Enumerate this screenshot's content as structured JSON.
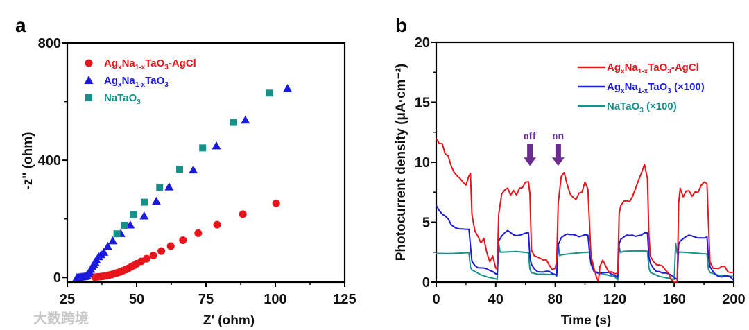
{
  "chart_data": [
    {
      "panel_label": "a",
      "type": "scatter",
      "xlabel": "Z' (ohm)",
      "ylabel": "-z'' (ohm)",
      "xlim": [
        25,
        125
      ],
      "ylim": [
        -16,
        800
      ],
      "xticks": [
        "25",
        "50",
        "75",
        "100",
        "125"
      ],
      "xtick_values": [
        25,
        50,
        75,
        100,
        125
      ],
      "yticks": [
        "0",
        "400",
        "800"
      ],
      "ytick_values": [
        0,
        400,
        800
      ],
      "grid": false,
      "legend_position": "top-left",
      "series": [
        {
          "name": "AgxNa1-xTaO3-AgCl",
          "label_parts": [
            [
              "Ag",
              ""
            ],
            [
              "x",
              "sub"
            ],
            [
              "Na",
              ""
            ],
            [
              "1-x",
              "sub"
            ],
            [
              "TaO",
              ""
            ],
            [
              "3",
              "sub"
            ],
            [
              "-AgCl",
              ""
            ]
          ],
          "marker": "circle",
          "color": "#e8141c",
          "x": [
            35,
            36,
            37,
            38,
            39,
            40,
            41,
            42,
            43,
            44,
            45,
            46,
            47,
            48,
            49,
            50,
            51.7,
            53.6,
            56,
            58.9,
            62.3,
            66.7,
            72.2,
            79,
            88.3,
            100.3
          ],
          "y": [
            1,
            2,
            3,
            4,
            6,
            8,
            10,
            13,
            16,
            19,
            23,
            27,
            31,
            36,
            41,
            47,
            55,
            64,
            75,
            90,
            107,
            127,
            151,
            180,
            216,
            253
          ]
        },
        {
          "name": "AgxNa1-xTaO3",
          "label_parts": [
            [
              "Ag",
              ""
            ],
            [
              "x",
              "sub"
            ],
            [
              "Na",
              ""
            ],
            [
              "1-x",
              "sub"
            ],
            [
              "TaO",
              ""
            ],
            [
              "3",
              "sub"
            ]
          ],
          "marker": "triangle",
          "color": "#1a1adc",
          "x": [
            28.5,
            29,
            29.5,
            30,
            30.5,
            31,
            31.5,
            32,
            32.5,
            33,
            33.5,
            34,
            34.5,
            35,
            35.5,
            36.3,
            37.2,
            38.2,
            39.6,
            41.4,
            44.3,
            47.7,
            52.7,
            57.1,
            61.7,
            70.4,
            78.75,
            89.2,
            104.4
          ],
          "y": [
            0,
            1,
            1,
            2,
            2,
            3,
            4,
            7,
            12,
            20,
            28,
            36,
            44,
            52,
            60,
            71,
            78,
            86,
            106,
            125,
            150,
            179,
            210,
            260,
            309,
            367,
            449,
            537,
            645
          ]
        },
        {
          "name": "NaTaO3",
          "label_parts": [
            [
              "NaTaO",
              ""
            ],
            [
              "3",
              "sub"
            ]
          ],
          "marker": "square",
          "color": "#17908a",
          "x": [
            42.9,
            45.5,
            48.75,
            52.75,
            58.3,
            65.5,
            73.8,
            85,
            97.9
          ],
          "y": [
            149,
            178,
            215,
            257,
            307,
            369,
            442,
            529,
            629
          ]
        }
      ]
    },
    {
      "panel_label": "b",
      "type": "line",
      "xlabel": "Time (s)",
      "ylabel": "Photocurrent density (μA·cm⁻²)",
      "xlim": [
        0,
        200
      ],
      "ylim": [
        0,
        20
      ],
      "xticks": [
        "0",
        "40",
        "80",
        "120",
        "160",
        "200"
      ],
      "xtick_values": [
        0,
        40,
        80,
        120,
        160,
        200
      ],
      "yticks": [
        "0",
        "5",
        "10",
        "15",
        "20"
      ],
      "ytick_values": [
        0,
        5,
        10,
        15,
        20
      ],
      "grid": false,
      "legend_position": "top-right",
      "annotations": [
        {
          "text": "off",
          "x": 63,
          "y": 9.7,
          "color": "#6a2c91"
        },
        {
          "text": "on",
          "x": 82,
          "y": 9.7,
          "color": "#6a2c91"
        }
      ],
      "series": [
        {
          "name": "AgxNa1-xTaO3-AgCl",
          "label_parts": [
            [
              "Ag",
              ""
            ],
            [
              "x",
              "sub"
            ],
            [
              "Na",
              ""
            ],
            [
              "1-x",
              "sub"
            ],
            [
              "TaO",
              ""
            ],
            [
              "3",
              "sub"
            ],
            [
              "-AgCl",
              ""
            ]
          ],
          "color": "#e8141c",
          "x": [
            0,
            2,
            4,
            6,
            8,
            10,
            12,
            14,
            16,
            18,
            20,
            22,
            23,
            24,
            26,
            28,
            30,
            32,
            34,
            36,
            38,
            40,
            41,
            42,
            44,
            46,
            48,
            50,
            52,
            54,
            56,
            58,
            60,
            62,
            63,
            64,
            66,
            68,
            70,
            72,
            74,
            76,
            78,
            80,
            81,
            82,
            84,
            86,
            88,
            90,
            92,
            94,
            96,
            98,
            100,
            102,
            103,
            104,
            106,
            108,
            109,
            110,
            112,
            114,
            116,
            118,
            120,
            122,
            123,
            124,
            126,
            128,
            130,
            132,
            134,
            136,
            138,
            140,
            142,
            143,
            144,
            146,
            148,
            150,
            152,
            154,
            156,
            158,
            160,
            162,
            163,
            164,
            166,
            168,
            170,
            172,
            174,
            176,
            178,
            180,
            182,
            183,
            184,
            186,
            188,
            190,
            192,
            194,
            196,
            198,
            200
          ],
          "y": [
            12,
            11.3,
            11.2,
            10.5,
            10.6,
            10,
            9.5,
            9,
            8.5,
            8,
            7.8,
            8.8,
            9.3,
            6,
            4.5,
            3.8,
            3,
            3.3,
            2.3,
            1.8,
            2.5,
            1.5,
            1.2,
            5.5,
            7,
            7.4,
            7.8,
            7.5,
            8,
            7.5,
            7.8,
            7.6,
            8,
            8.2,
            7.5,
            3,
            2.5,
            2.2,
            1.8,
            1.5,
            1.6,
            1.4,
            1.3,
            1.5,
            2,
            6.5,
            8.5,
            8.8,
            8,
            7.5,
            7.4,
            7.2,
            7.5,
            7.3,
            8,
            7.5,
            5,
            2.5,
            1.5,
            0.5,
            0,
            1,
            1.5,
            1.2,
            1,
            1.2,
            1,
            0.8,
            5.5,
            6,
            6.5,
            6.8,
            7,
            7.5,
            8,
            8.4,
            8.8,
            9.5,
            8.5,
            4,
            2.5,
            2,
            1.5,
            1.2,
            1,
            0.8,
            0.8,
            0.5,
            0.3,
            0.2,
            6.5,
            7.5,
            6.8,
            7.5,
            7.8,
            7.5,
            7.8,
            7.5,
            7.8,
            8,
            8,
            5,
            2,
            1.5,
            1.3,
            1,
            1,
            1,
            0.8,
            1,
            1.2
          ]
        },
        {
          "name": "AgxNa1-xTaO3 (×100)",
          "label_parts": [
            [
              "Ag",
              ""
            ],
            [
              "x",
              "sub"
            ],
            [
              "Na",
              ""
            ],
            [
              "1-x",
              "sub"
            ],
            [
              "TaO",
              ""
            ],
            [
              "3",
              "sub"
            ],
            [
              " (×100)",
              ""
            ]
          ],
          "color": "#1a1adc",
          "x": [
            0,
            2,
            4,
            6,
            8,
            10,
            12,
            14,
            16,
            18,
            20,
            22,
            23,
            24,
            26,
            28,
            30,
            32,
            34,
            36,
            38,
            40,
            41,
            42,
            44,
            46,
            48,
            50,
            52,
            54,
            56,
            58,
            60,
            62,
            63,
            64,
            66,
            68,
            70,
            72,
            74,
            76,
            78,
            80,
            81,
            82,
            84,
            86,
            88,
            90,
            92,
            94,
            96,
            98,
            100,
            102,
            103,
            104,
            106,
            108,
            110,
            112,
            114,
            116,
            118,
            120,
            122,
            123,
            124,
            126,
            128,
            130,
            132,
            134,
            136,
            138,
            140,
            142,
            143,
            144,
            146,
            148,
            150,
            152,
            154,
            156,
            158,
            160,
            162,
            163,
            164,
            166,
            168,
            170,
            172,
            174,
            176,
            178,
            180,
            182,
            183,
            184,
            186,
            188,
            190,
            192,
            194,
            196,
            198,
            200
          ],
          "y": [
            6.5,
            6,
            5.6,
            5.4,
            5.2,
            4.8,
            4.7,
            4.6,
            4.5,
            4.4,
            4.3,
            4.3,
            3,
            1.8,
            1.5,
            1.3,
            1.2,
            1.1,
            1,
            0.9,
            0.9,
            0.8,
            0.8,
            3.5,
            3.8,
            4,
            4.2,
            4.1,
            4,
            4,
            4,
            4,
            4,
            4,
            2,
            1.5,
            1.2,
            1,
            0.9,
            0.8,
            0.8,
            0.8,
            0.7,
            0.7,
            0.7,
            3.2,
            3.7,
            3.8,
            3.9,
            3.9,
            4,
            4,
            3.9,
            3.9,
            3.9,
            3.8,
            2.5,
            1.5,
            1,
            0.9,
            0.8,
            0.8,
            0.7,
            0.7,
            0.6,
            0.6,
            0.5,
            3.3,
            3.6,
            3.7,
            3.8,
            3.8,
            3.9,
            3.9,
            4,
            4,
            4.1,
            4,
            2,
            1.5,
            1.2,
            1,
            1,
            0.8,
            0.7,
            0.6,
            0.5,
            0.4,
            0.3,
            3.3,
            3.5,
            3.6,
            3.7,
            3.8,
            3.8,
            3.8,
            3.8,
            3.8,
            3.7,
            3.7,
            2,
            1.2,
            0.9,
            0.7,
            0.6,
            0.5,
            0.5,
            0.4,
            0.3,
            0.1
          ]
        },
        {
          "name": "NaTaO3 (×100)",
          "label_parts": [
            [
              "NaTaO",
              ""
            ],
            [
              "3",
              "sub"
            ],
            [
              " (×100)",
              ""
            ]
          ],
          "color": "#17908a",
          "x": [
            0,
            10,
            22,
            23,
            24,
            26,
            30,
            35,
            40,
            41,
            42,
            43,
            46,
            54,
            62,
            63,
            64,
            68,
            72,
            80,
            81,
            82,
            83,
            84,
            94,
            104,
            105,
            106,
            110,
            120,
            122,
            123,
            124,
            126,
            134,
            142,
            143,
            144,
            150,
            160,
            161,
            162,
            164,
            172,
            182,
            183,
            184,
            190,
            200
          ],
          "y": [
            2.5,
            2.5,
            2.5,
            1.2,
            0.9,
            0.8,
            0.6,
            0.5,
            0.4,
            0.3,
            3.2,
            2.4,
            2.4,
            2.5,
            2.5,
            1.2,
            0.9,
            0.7,
            0.6,
            0.5,
            0.4,
            3.2,
            2.3,
            2.4,
            2.5,
            2.5,
            1.1,
            0.8,
            0.7,
            0.5,
            0.3,
            3,
            2.5,
            2.5,
            2.5,
            2.5,
            1.2,
            0.9,
            0.6,
            0.3,
            3.2,
            2.3,
            2.4,
            2.4,
            2.4,
            1.2,
            0.9,
            0.6,
            0.4
          ]
        }
      ]
    }
  ],
  "watermark": "大数跨境"
}
